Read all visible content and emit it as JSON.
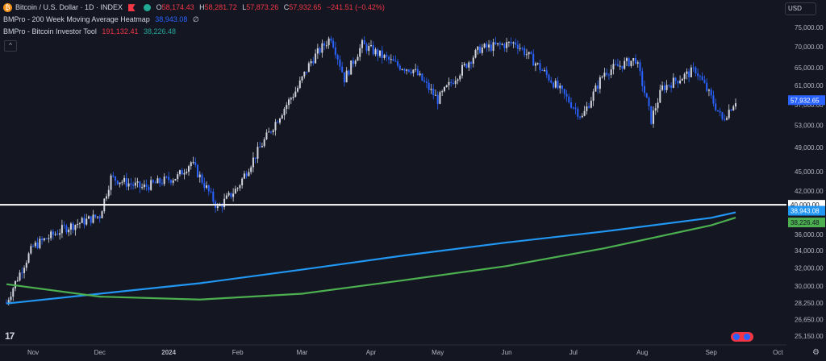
{
  "legend": {
    "symbol": "Bitcoin / U.S. Dollar · 1D · INDEX",
    "o_label": "O",
    "o": "58,174.43",
    "h_label": "H",
    "h": "58,281.72",
    "l_label": "L",
    "l": "57,873.26",
    "c_label": "C",
    "c": "57,932.65",
    "change": "−241.51 (−0.42%)",
    "heatmap_name": "BMPro - 200 Week Moving Average Heatmap",
    "heatmap_value": "38,943.08",
    "heatmap_extra": "∅",
    "investor_name": "BMPro - Bitcoin Investor Tool",
    "investor_value_a": "191,132.41",
    "investor_value_b": "38,226.48"
  },
  "controls": {
    "currency": "USD",
    "collapse": "^",
    "tv_logo": "17",
    "settings_icon": "gear-icon",
    "btc_icon": "bitcoin-icon"
  },
  "colors": {
    "background": "#141722",
    "candle": "#d1d4dc",
    "candle_down": "#2962ff",
    "ma_blue": "#2196f3",
    "investor_green": "#4caf50",
    "support_line": "#ffffff",
    "price_label": "#2962ff"
  },
  "chart_data": {
    "type": "line",
    "title": "Bitcoin / U.S. Dollar · 1D · INDEX",
    "x_ticks": [
      "Nov",
      "Dec",
      "2024",
      "Feb",
      "Mar",
      "Apr",
      "May",
      "Jun",
      "Jul",
      "Aug",
      "Sep",
      "Oct"
    ],
    "y_ticks": [
      25150,
      26650,
      28250,
      30000,
      32000,
      34000,
      36000,
      42000,
      45000,
      49000,
      53000,
      57000,
      61000,
      65000,
      70000,
      75000
    ],
    "y_tick_labels": [
      "25,150.00",
      "26,650.00",
      "28,250.00",
      "30,000.00",
      "32,000.00",
      "34,000.00",
      "36,000.00",
      "42,000.00",
      "45,000.00",
      "49,000.00",
      "53,000.00",
      "57,000.00",
      "61,000.00",
      "65,000.00",
      "70,000.00",
      "75,000.00"
    ],
    "ylim": [
      24500,
      78000
    ],
    "y_scale": "log",
    "horizontal_line": {
      "value": 40000,
      "label": "40,000.00"
    },
    "last_price": {
      "value": 57932.65,
      "label": "57,932.65"
    },
    "series": [
      {
        "name": "Bitcoin / U.S. Dollar",
        "kind": "candles",
        "x": [
          "2023-10-20",
          "2023-11-01",
          "2023-11-15",
          "2023-12-01",
          "2023-12-06",
          "2023-12-20",
          "2024-01-05",
          "2024-01-11",
          "2024-01-23",
          "2024-02-01",
          "2024-02-15",
          "2024-02-28",
          "2024-03-05",
          "2024-03-14",
          "2024-03-20",
          "2024-03-28",
          "2024-04-13",
          "2024-04-20",
          "2024-05-01",
          "2024-05-20",
          "2024-06-05",
          "2024-06-24",
          "2024-07-05",
          "2024-07-15",
          "2024-07-29",
          "2024-08-05",
          "2024-08-10",
          "2024-08-25",
          "2024-09-06",
          "2024-09-12"
        ],
        "values": [
          28300,
          34500,
          36800,
          38500,
          44000,
          42500,
          44200,
          46500,
          39500,
          42500,
          51500,
          60500,
          66500,
          72500,
          62500,
          70500,
          65500,
          64500,
          58000,
          69500,
          71000,
          60500,
          54500,
          64000,
          67000,
          54000,
          60500,
          64500,
          54000,
          57933
        ]
      },
      {
        "name": "BMPro - 200 Week Moving Average Heatmap",
        "kind": "line",
        "x": [
          "2023-10-20",
          "2023-12-01",
          "2024-01-15",
          "2024-03-01",
          "2024-04-15",
          "2024-06-01",
          "2024-07-15",
          "2024-09-01",
          "2024-09-12"
        ],
        "values": [
          28200,
          29200,
          30300,
          31800,
          33400,
          35000,
          36400,
          38200,
          38943
        ]
      },
      {
        "name": "BMPro - Bitcoin Investor Tool",
        "kind": "line",
        "x": [
          "2023-10-20",
          "2023-12-01",
          "2024-01-15",
          "2024-03-01",
          "2024-04-15",
          "2024-06-01",
          "2024-07-15",
          "2024-09-01",
          "2024-09-12"
        ],
        "values": [
          30200,
          28900,
          28600,
          29200,
          30600,
          32200,
          34300,
          37200,
          38226
        ]
      }
    ],
    "value_labels": [
      {
        "series": "BMPro - 200 Week Moving Average Heatmap",
        "label": "38,943.08"
      },
      {
        "series": "BMPro - Bitcoin Investor Tool",
        "label": "38,226.48"
      }
    ],
    "grid": false,
    "legend_position": "top-left"
  }
}
